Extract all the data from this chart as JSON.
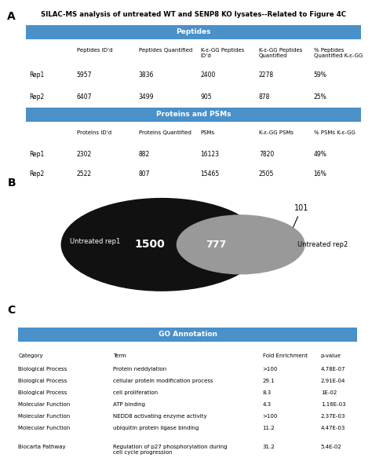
{
  "title": "SILAC-MS analysis of untreated WT and SENP8 KO lysates--Related to Figure 4C",
  "section_A_label": "A",
  "section_B_label": "B",
  "section_C_label": "C",
  "peptides_header": "Peptides",
  "peptides_col_headers": [
    "",
    "Peptides ID’d",
    "Peptides Quantified",
    "K-ε-GG Peptides\nID’d",
    "K-ε-GG Peptides\nQuantified",
    "% Peptides\nQuantified K-ε-GG"
  ],
  "peptides_rows": [
    [
      "Rep1",
      "5957",
      "3836",
      "2400",
      "2278",
      "59%"
    ],
    [
      "Rep2",
      "6407",
      "3499",
      "905",
      "878",
      "25%"
    ]
  ],
  "proteins_header": "Proteins and PSMs",
  "proteins_col_headers": [
    "",
    "Proteins ID’d",
    "Proteins Quantified",
    "PSMs",
    "K-ε-GG PSMs",
    "% PSMs K-ε-GG"
  ],
  "proteins_rows": [
    [
      "Rep1",
      "2302",
      "882",
      "16123",
      "7820",
      "49%"
    ],
    [
      "Rep2",
      "2522",
      "807",
      "15465",
      "2505",
      "16%"
    ]
  ],
  "header_bg_color": "#4a90c9",
  "header_text_color": "white",
  "venn_left_label": "Untreated rep1",
  "venn_right_label": "Untreated rep2",
  "venn_left_value": "1500",
  "venn_overlap_value": "777",
  "venn_right_value": "101",
  "venn_left_color": "#111111",
  "venn_overlap_color": "#999999",
  "go_header": "GO Annotation",
  "go_col_headers": [
    "Category",
    "Term",
    "Fold Enrichment",
    "p-value"
  ],
  "go_rows": [
    [
      "Biological Process",
      "Protein neddylation",
      ">100",
      "4.78E-07"
    ],
    [
      "Biological Process",
      "cellular protein modification process",
      "29.1",
      "2.91E-04"
    ],
    [
      "Biological Process",
      "cell proliferation",
      "8.3",
      "1E-02"
    ],
    [
      "Molecular Function",
      "ATP binding",
      "4.3",
      "1.16E-03"
    ],
    [
      "Molecular Function",
      "NEDD8 activating enzyme activity",
      ">100",
      "2.37E-03"
    ],
    [
      "Molecular Function",
      "ubiquitin protein ligase binding",
      "11.2",
      "4.47E-03"
    ],
    [
      "Biocarta Pathway",
      "Regulation of p27 phosphorylation during\ncell cycle progression",
      "31.2",
      "5.4E-02"
    ]
  ],
  "figsize": [
    4.74,
    6.06
  ],
  "dpi": 100
}
